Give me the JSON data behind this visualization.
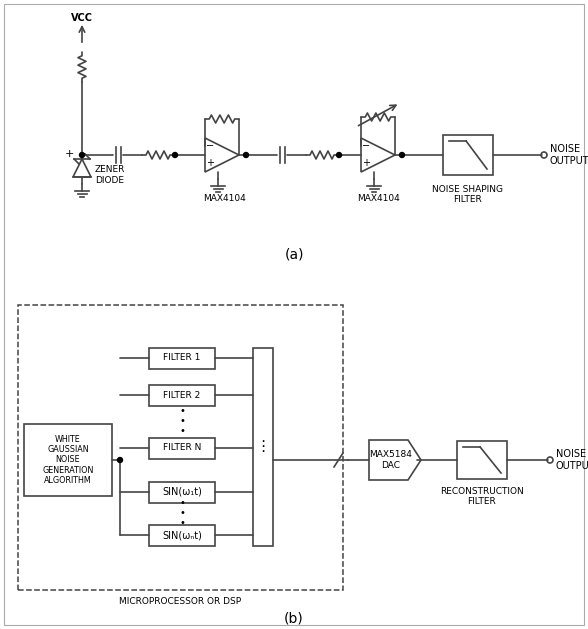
{
  "bg_color": "#ffffff",
  "line_color": "#444444",
  "text_color": "#000000",
  "fig_width": 5.88,
  "fig_height": 6.29,
  "dpi": 100,
  "part_a_label": "(a)",
  "part_b_label": "(b)",
  "vcc_label": "VCC",
  "zener_label": "ZENER\nDIODE",
  "max4104_1_label": "MAX4104",
  "max4104_2_label": "MAX4104",
  "noise_output_label": "NOISE\nOUTPUT",
  "noise_shaping_label": "NOISE SHAPING\nFILTER",
  "white_noise_label": "WHITE\nGAUSSIAN\nNOISE\nGENERATION\nALGORITHM",
  "filter1_label": "FILTER 1",
  "filter2_label": "FILTER 2",
  "filterN_label": "FILTER N",
  "sin1_label": "SIN(ω₁t)",
  "sinN_label": "SIN(ωₙt)",
  "max5184_label": "MAX5184\nDAC",
  "reconstruction_label": "RECONSTRUCTION\nFILTER",
  "noise_output2_label": "NOISE\nOUTPUT",
  "microprocessor_label": "MICROPROCESSOR OR DSP"
}
